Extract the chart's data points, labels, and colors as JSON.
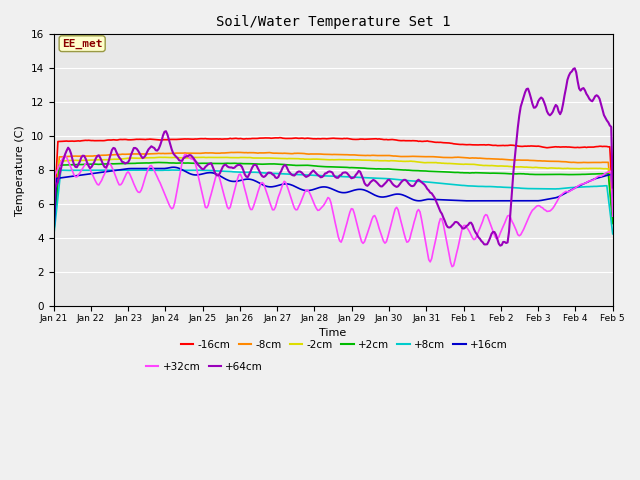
{
  "title": "Soil/Water Temperature Set 1",
  "xlabel": "Time",
  "ylabel": "Temperature (C)",
  "ylim": [
    0,
    16
  ],
  "yticks": [
    0,
    2,
    4,
    6,
    8,
    10,
    12,
    14,
    16
  ],
  "plot_bg": "#e8e8e8",
  "fig_bg": "#f0f0f0",
  "annotation_text": "EE_met",
  "annotation_color": "#8b0000",
  "annotation_bg": "#ffffcc",
  "annotation_border": "#999944",
  "x_labels": [
    "Jan 21",
    "Jan 22",
    "Jan 23",
    "Jan 24",
    "Jan 25",
    "Jan 26",
    "Jan 27",
    "Jan 28",
    "Jan 29",
    "Jan 30",
    "Jan 31",
    "Feb 1",
    "Feb 2",
    "Feb 3",
    "Feb 4",
    "Feb 5"
  ],
  "series_colors": {
    "-16cm": "#ff0000",
    "-8cm": "#ff8800",
    "-2cm": "#dddd00",
    "+2cm": "#00bb00",
    "+8cm": "#00cccc",
    "+16cm": "#0000cc",
    "+32cm": "#ff44ff",
    "+64cm": "#9900bb"
  },
  "legend_order": [
    "-16cm",
    "-8cm",
    "-2cm",
    "+2cm",
    "+8cm",
    "+16cm",
    "+32cm",
    "+64cm"
  ]
}
